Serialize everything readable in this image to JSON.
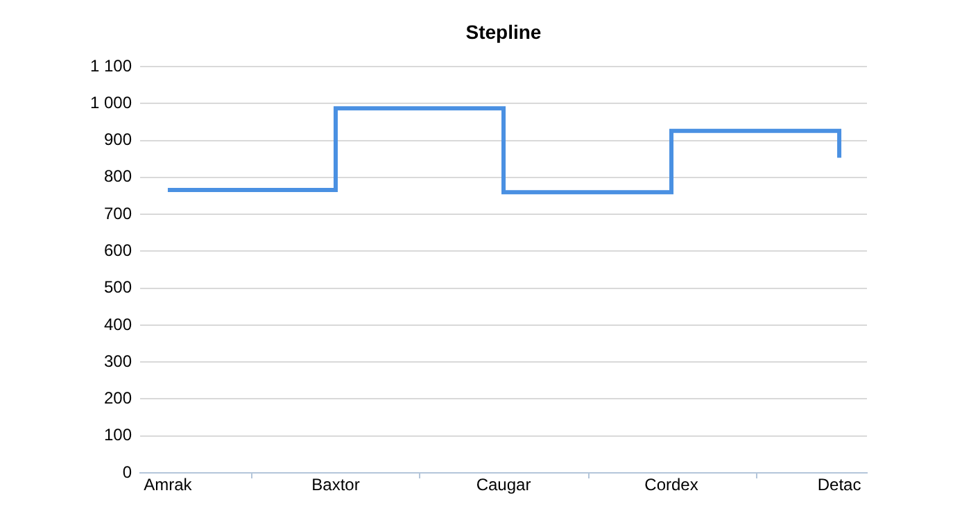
{
  "chart_data": {
    "type": "step",
    "title": "Stepline",
    "categories": [
      "Amrak",
      "Baxtor",
      "Caugar",
      "Cordex",
      "Detac"
    ],
    "series": [
      {
        "color": "#4a90e2",
        "values": [
          766,
          987,
          760,
          926,
          853
        ]
      }
    ],
    "ylim": [
      0,
      1100
    ],
    "yticks": [
      0,
      100,
      200,
      300,
      400,
      500,
      600,
      700,
      800,
      900,
      {
        "value": 1000,
        "label": "1 000"
      },
      {
        "value": 1100,
        "label": "1 100"
      }
    ],
    "grid": "y",
    "legend": false,
    "marker": "none",
    "line_style": "solid"
  }
}
